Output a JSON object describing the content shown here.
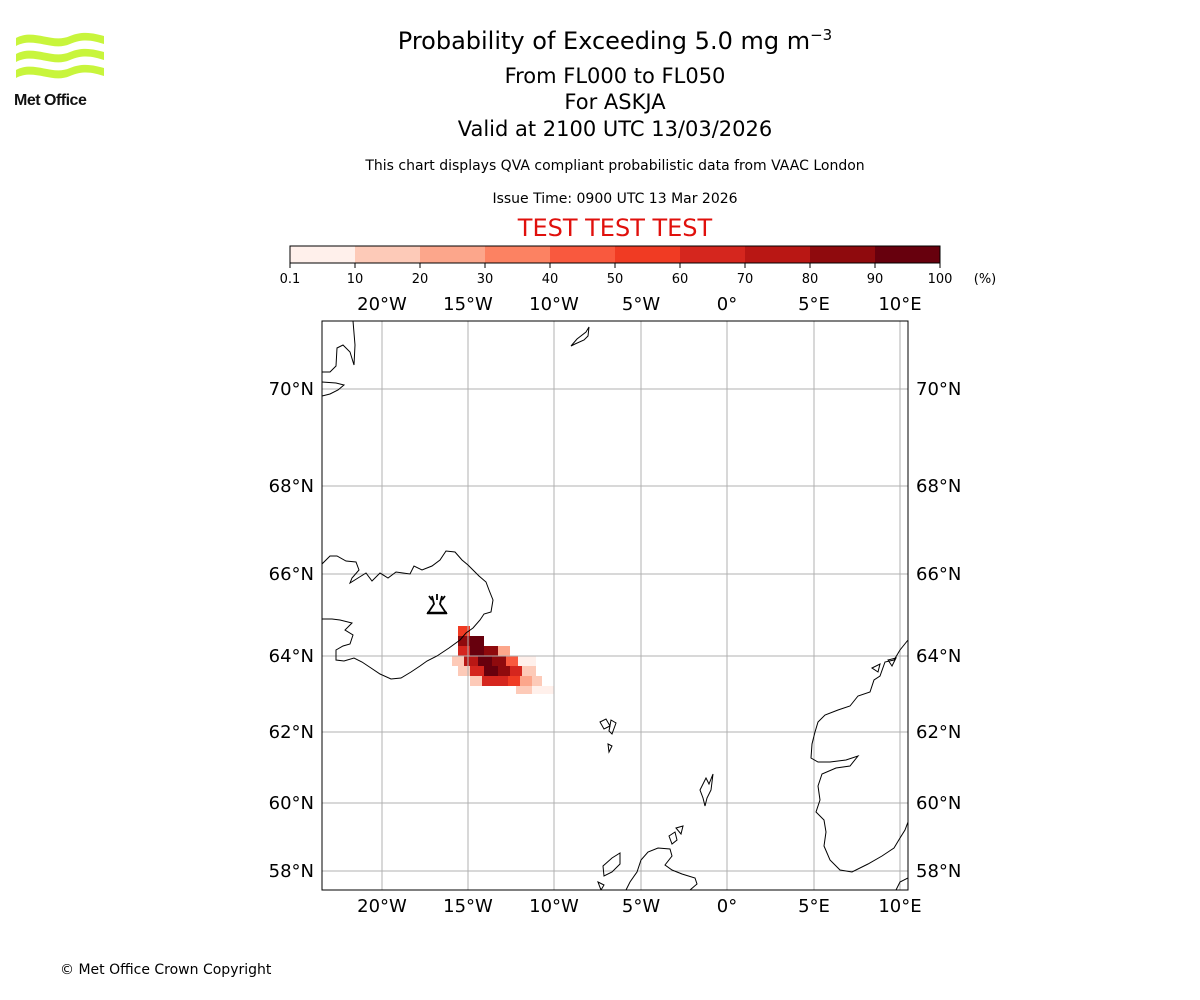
{
  "logo": {
    "text": "Met Office",
    "color": "#c8f53c"
  },
  "title": {
    "main": "Probability of Exceeding 5.0 mg m",
    "main_superscript": "−3",
    "levels": "From FL000 to FL050",
    "volcano": "For ASKJA",
    "valid": "Valid at 2100 UTC 13/03/2026"
  },
  "disclaimer": "This chart displays QVA compliant probabilistic data from VAAC London",
  "issue_time": "Issue Time: 0900 UTC 13 Mar 2026",
  "test_banner": "TEST TEST TEST",
  "colorbar": {
    "ticks": [
      "0.1",
      "10",
      "20",
      "30",
      "40",
      "50",
      "60",
      "70",
      "80",
      "90",
      "100"
    ],
    "unit": "(%)",
    "colors": [
      "#fff0eb",
      "#fdcab8",
      "#fca68b",
      "#fc8262",
      "#f9593e",
      "#f03b23",
      "#d5261e",
      "#b91714",
      "#8f0a0d",
      "#67000d"
    ]
  },
  "map": {
    "lon_labels": [
      "20°W",
      "15°W",
      "10°W",
      "5°W",
      "0°",
      "5°E",
      "10°E"
    ],
    "lat_labels": [
      "70°N",
      "68°N",
      "66°N",
      "64°N",
      "62°N",
      "60°N",
      "58°N"
    ],
    "volcano_name": "ASKJA",
    "volcano_icon": "volcano-icon"
  },
  "copyright": "© Met Office Crown Copyright"
}
